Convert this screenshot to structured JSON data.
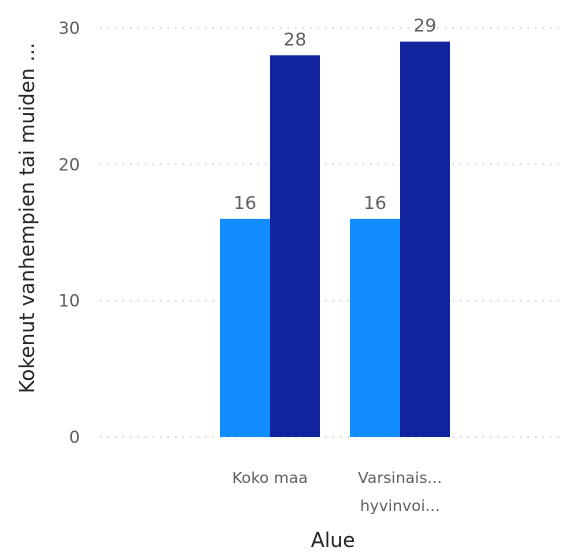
{
  "chart_data": {
    "type": "bar",
    "xlabel": "Alue",
    "ylabel": "Kokenut vanhempien tai muiden ...",
    "ylim": [
      0,
      30
    ],
    "yticks": [
      0,
      10,
      20,
      30
    ],
    "grid": true,
    "categories": [
      {
        "lines": [
          "Koko maa"
        ]
      },
      {
        "lines": [
          "Varsinais...",
          "hyvinvoi..."
        ]
      }
    ],
    "series": [
      {
        "color": "#118dff",
        "values": [
          16,
          16
        ]
      },
      {
        "color": "#12239e",
        "values": [
          28,
          29
        ]
      }
    ],
    "data_labels": [
      [
        "16",
        "16"
      ],
      [
        "28",
        "29"
      ]
    ]
  }
}
